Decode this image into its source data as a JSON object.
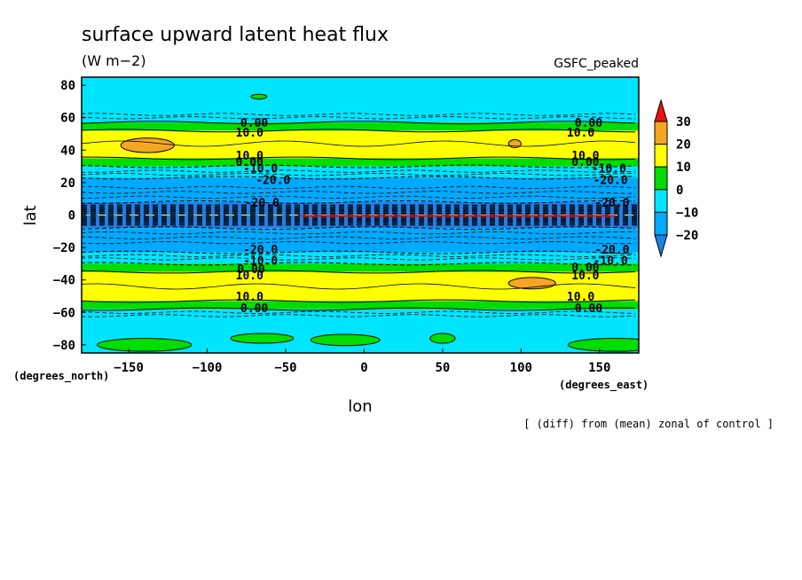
{
  "chart_data": {
    "type": "heatmap",
    "title": "surface upward latent heat flux",
    "units": "(W m−2)",
    "dataset_label": "GSFC_peaked",
    "xlabel": "lon",
    "ylabel": "lat",
    "x_unit_label": "(degrees_east)",
    "y_unit_label": "(degrees_north)",
    "footnote": "[ (diff) from (mean) zonal of control ]",
    "xlim": [
      -180,
      175
    ],
    "ylim": [
      -85,
      85
    ],
    "x_ticks": [
      -150,
      -100,
      -50,
      0,
      50,
      100,
      150
    ],
    "y_ticks": [
      80,
      60,
      40,
      20,
      0,
      -20,
      -40,
      -60,
      -80
    ],
    "x_tick_labels": [
      "−150",
      "−100",
      "−50",
      "0",
      "50",
      "100",
      "150"
    ],
    "y_tick_labels": [
      "80",
      "60",
      "40",
      "20",
      "0",
      "−20",
      "−40",
      "−60",
      "−80"
    ],
    "colorbar": {
      "levels": [
        -20,
        -10,
        0,
        10,
        20,
        30
      ],
      "labels": [
        "−20",
        "−10",
        "0",
        "10",
        "20",
        "30"
      ],
      "colors": {
        "below_-20": "#1e7fe6",
        "-20_to_-10": "#00aaff",
        "-10_to_0": "#00e5ff",
        "0_to_10": "#00dd00",
        "10_to_20": "#ffff00",
        "20_to_30": "#f5a623",
        "above_30": "#ee1111"
      }
    },
    "latitude_bands": [
      {
        "lat_from": 85,
        "lat_to": 57,
        "value_class": "-10_to_0"
      },
      {
        "lat_from": 57,
        "lat_to": 52,
        "value_class": "0_to_10"
      },
      {
        "lat_from": 52,
        "lat_to": 35,
        "value_class": "10_to_20"
      },
      {
        "lat_from": 35,
        "lat_to": 30,
        "value_class": "0_to_10"
      },
      {
        "lat_from": 30,
        "lat_to": 23,
        "value_class": "-10_to_0"
      },
      {
        "lat_from": 23,
        "lat_to": 8,
        "value_class": "-20_to_-10"
      },
      {
        "lat_from": 8,
        "lat_to": -8,
        "value_class": "below_-20"
      },
      {
        "lat_from": -8,
        "lat_to": -23,
        "value_class": "-20_to_-10"
      },
      {
        "lat_from": -23,
        "lat_to": -30,
        "value_class": "-10_to_0"
      },
      {
        "lat_from": -30,
        "lat_to": -35,
        "value_class": "0_to_10"
      },
      {
        "lat_from": -35,
        "lat_to": -53,
        "value_class": "10_to_20"
      },
      {
        "lat_from": -53,
        "lat_to": -58,
        "value_class": "0_to_10"
      },
      {
        "lat_from": -58,
        "lat_to": -85,
        "value_class": "-10_to_0"
      }
    ],
    "patches": [
      {
        "lon": -138,
        "lat": 43,
        "rx": 17,
        "ry": 4.5,
        "value_class": "20_to_30"
      },
      {
        "lon": 96,
        "lat": 44,
        "rx": 4,
        "ry": 2.5,
        "value_class": "20_to_30"
      },
      {
        "lon": 107,
        "lat": -42,
        "rx": 15,
        "ry": 3.5,
        "value_class": "20_to_30"
      },
      {
        "lon": -67,
        "lat": 73,
        "rx": 5,
        "ry": 1.5,
        "value_class": "0_to_10"
      },
      {
        "lon": -140,
        "lat": -80,
        "rx": 30,
        "ry": 4,
        "value_class": "0_to_10"
      },
      {
        "lon": -65,
        "lat": -76,
        "rx": 20,
        "ry": 3,
        "value_class": "0_to_10"
      },
      {
        "lon": -12,
        "lat": -77,
        "rx": 22,
        "ry": 3.5,
        "value_class": "0_to_10"
      },
      {
        "lon": 50,
        "lat": -76,
        "rx": 8,
        "ry": 3,
        "value_class": "0_to_10"
      },
      {
        "lon": 160,
        "lat": -80,
        "rx": 30,
        "ry": 4,
        "value_class": "0_to_10"
      }
    ],
    "contour_labels": [
      {
        "text": "0.00",
        "lon": -70,
        "lat": 57
      },
      {
        "text": "10.0",
        "lon": -73,
        "lat": 51
      },
      {
        "text": "10.0",
        "lon": -73,
        "lat": 37
      },
      {
        "text": "0.00",
        "lon": -73,
        "lat": 33
      },
      {
        "text": "-10.0",
        "lon": -66,
        "lat": 29
      },
      {
        "text": "-20.0",
        "lon": -58,
        "lat": 22
      },
      {
        "text": "-20.0",
        "lon": -65,
        "lat": 8
      },
      {
        "text": "-20.0",
        "lon": -66,
        "lat": -21
      },
      {
        "text": "-10.0",
        "lon": -66,
        "lat": -28
      },
      {
        "text": "0.00",
        "lon": -72,
        "lat": -33
      },
      {
        "text": "10.0",
        "lon": -73,
        "lat": -37
      },
      {
        "text": "10.0",
        "lon": -73,
        "lat": -50
      },
      {
        "text": "0.00",
        "lon": -70,
        "lat": -57
      },
      {
        "text": "0.00",
        "lon": 143,
        "lat": 57
      },
      {
        "text": "10.0",
        "lon": 138,
        "lat": 51
      },
      {
        "text": "10.0",
        "lon": 141,
        "lat": 37
      },
      {
        "text": "0.00",
        "lon": 141,
        "lat": 33
      },
      {
        "text": "-10.0",
        "lon": 156,
        "lat": 29
      },
      {
        "text": "-20.0",
        "lon": 157,
        "lat": 22
      },
      {
        "text": "-20.0",
        "lon": 158,
        "lat": 8
      },
      {
        "text": "-20.0",
        "lon": 158,
        "lat": -21
      },
      {
        "text": "-10.0",
        "lon": 157,
        "lat": -28
      },
      {
        "text": "0.00",
        "lon": 141,
        "lat": -32
      },
      {
        "text": "10.0",
        "lon": 141,
        "lat": -37
      },
      {
        "text": "10.0",
        "lon": 138,
        "lat": -50
      },
      {
        "text": "0.00",
        "lon": 143,
        "lat": -57
      }
    ]
  }
}
